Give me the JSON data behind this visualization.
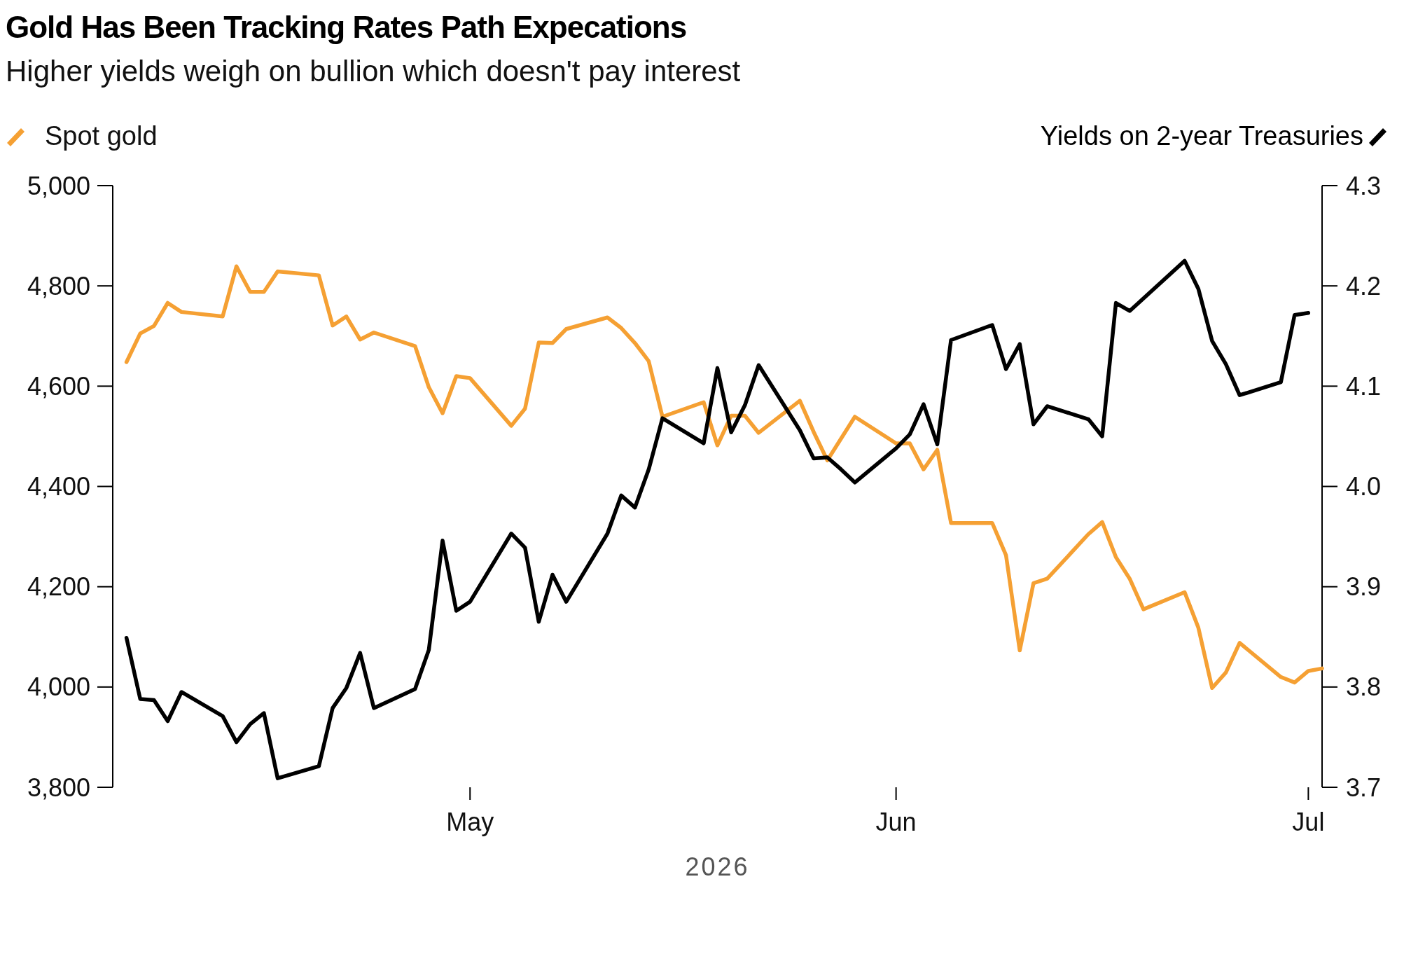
{
  "chart_data": {
    "type": "line",
    "title": "Gold Has Been Tracking Rates Path Expecations",
    "subtitle": "Higher yields weigh on bullion which doesn't pay interest",
    "xlabel": "2026",
    "legend": "top",
    "grid": false,
    "line_style": "solid",
    "marker": "none",
    "xlim": [
      "2026-04-05",
      "2026-07-02"
    ],
    "xticks": [
      {
        "value": "2026-05-01",
        "label": "May"
      },
      {
        "value": "2026-06-01",
        "label": "Jun"
      },
      {
        "value": "2026-07-01",
        "label": "Jul"
      }
    ],
    "ylim": [
      3800,
      5000
    ],
    "yticks": [
      {
        "value": 3800,
        "label": "3,800"
      },
      {
        "value": 4000,
        "label": "4,000"
      },
      {
        "value": 4200,
        "label": "4,200"
      },
      {
        "value": 4400,
        "label": "4,400"
      },
      {
        "value": 4600,
        "label": "4,600"
      },
      {
        "value": 4800,
        "label": "4,800"
      },
      {
        "value": 5000,
        "label": "5,000"
      }
    ],
    "y2lim": [
      3.7,
      4.3
    ],
    "y2ticks": [
      3.7,
      3.8,
      3.9,
      {
        "value": 4,
        "label": "4.0"
      },
      4.1,
      4.2,
      4.3
    ],
    "series": [
      {
        "name": "Spot gold",
        "color": "#f5a033",
        "x": [
          "2026-04-06",
          "2026-04-07",
          "2026-04-08",
          "2026-04-09",
          "2026-04-10",
          "2026-04-13",
          "2026-04-14",
          "2026-04-15",
          "2026-04-16",
          "2026-04-17",
          "2026-04-20",
          "2026-04-21",
          "2026-04-22",
          "2026-04-23",
          "2026-04-24",
          "2026-04-27",
          "2026-04-28",
          "2026-04-29",
          "2026-04-30",
          "2026-05-01",
          "2026-05-04",
          "2026-05-05",
          "2026-05-06",
          "2026-05-07",
          "2026-05-08",
          "2026-05-11",
          "2026-05-12",
          "2026-05-13",
          "2026-05-14",
          "2026-05-15",
          "2026-05-18",
          "2026-05-19",
          "2026-05-20",
          "2026-05-21",
          "2026-05-22",
          "2026-05-25",
          "2026-05-26",
          "2026-05-27",
          "2026-05-29",
          "2026-06-01",
          "2026-06-02",
          "2026-06-03",
          "2026-06-04",
          "2026-06-05",
          "2026-06-08",
          "2026-06-09",
          "2026-06-10",
          "2026-06-11",
          "2026-06-12",
          "2026-06-15",
          "2026-06-16",
          "2026-06-17",
          "2026-06-18",
          "2026-06-19",
          "2026-06-22",
          "2026-06-23",
          "2026-06-24",
          "2026-06-25",
          "2026-06-26",
          "2026-06-29",
          "2026-06-30",
          "2026-07-01",
          "2026-07-02"
        ],
        "values": [
          4648,
          4705,
          4720,
          4766,
          4748,
          4739,
          4839,
          4788,
          4788,
          4829,
          4821,
          4721,
          4739,
          4693,
          4707,
          4680,
          4598,
          4546,
          4620,
          4616,
          4521,
          4555,
          4687,
          4686,
          4714,
          4737,
          4716,
          4686,
          4650,
          4539,
          4568,
          4482,
          4541,
          4541,
          4507,
          4571,
          4509,
          4452,
          4539,
          4486,
          4486,
          4434,
          4473,
          4327,
          4327,
          4263,
          4073,
          4207,
          4216,
          4305,
          4329,
          4259,
          4216,
          4155,
          4189,
          4118,
          3998,
          4029,
          4088,
          4020,
          4009,
          4032,
          4037
        ]
      },
      {
        "name": "Yields on 2-year Treasuries",
        "color": "#000000",
        "axis": "y2",
        "x": [
          "2026-04-06",
          "2026-04-07",
          "2026-04-08",
          "2026-04-09",
          "2026-04-10",
          "2026-04-13",
          "2026-04-14",
          "2026-04-15",
          "2026-04-16",
          "2026-04-17",
          "2026-04-20",
          "2026-04-21",
          "2026-04-22",
          "2026-04-23",
          "2026-04-24",
          "2026-04-27",
          "2026-04-28",
          "2026-04-29",
          "2026-04-30",
          "2026-05-01",
          "2026-05-04",
          "2026-05-05",
          "2026-05-06",
          "2026-05-07",
          "2026-05-08",
          "2026-05-11",
          "2026-05-12",
          "2026-05-13",
          "2026-05-14",
          "2026-05-15",
          "2026-05-18",
          "2026-05-19",
          "2026-05-20",
          "2026-05-21",
          "2026-05-22",
          "2026-05-25",
          "2026-05-26",
          "2026-05-27",
          "2026-05-28",
          "2026-05-29",
          "2026-06-01",
          "2026-06-02",
          "2026-06-03",
          "2026-06-04",
          "2026-06-05",
          "2026-06-08",
          "2026-06-09",
          "2026-06-10",
          "2026-06-11",
          "2026-06-12",
          "2026-06-15",
          "2026-06-16",
          "2026-06-17",
          "2026-06-18",
          "2026-06-22",
          "2026-06-23",
          "2026-06-24",
          "2026-06-25",
          "2026-06-26",
          "2026-06-29",
          "2026-06-30",
          "2026-07-01"
        ],
        "values": [
          3.849,
          3.788,
          3.787,
          3.766,
          3.795,
          3.771,
          3.745,
          3.763,
          3.774,
          3.709,
          3.721,
          3.779,
          3.799,
          3.834,
          3.779,
          3.798,
          3.837,
          3.946,
          3.876,
          3.885,
          3.953,
          3.939,
          3.865,
          3.912,
          3.885,
          3.953,
          3.991,
          3.979,
          4.017,
          4.068,
          4.043,
          4.118,
          4.054,
          4.081,
          4.121,
          4.056,
          4.028,
          4.029,
          4.017,
          4.004,
          4.038,
          4.052,
          4.082,
          4.042,
          4.146,
          4.161,
          4.117,
          4.142,
          4.062,
          4.08,
          4.067,
          4.05,
          4.183,
          4.175,
          4.225,
          4.197,
          4.145,
          4.122,
          4.091,
          4.104,
          4.171,
          4.173
        ]
      }
    ]
  }
}
